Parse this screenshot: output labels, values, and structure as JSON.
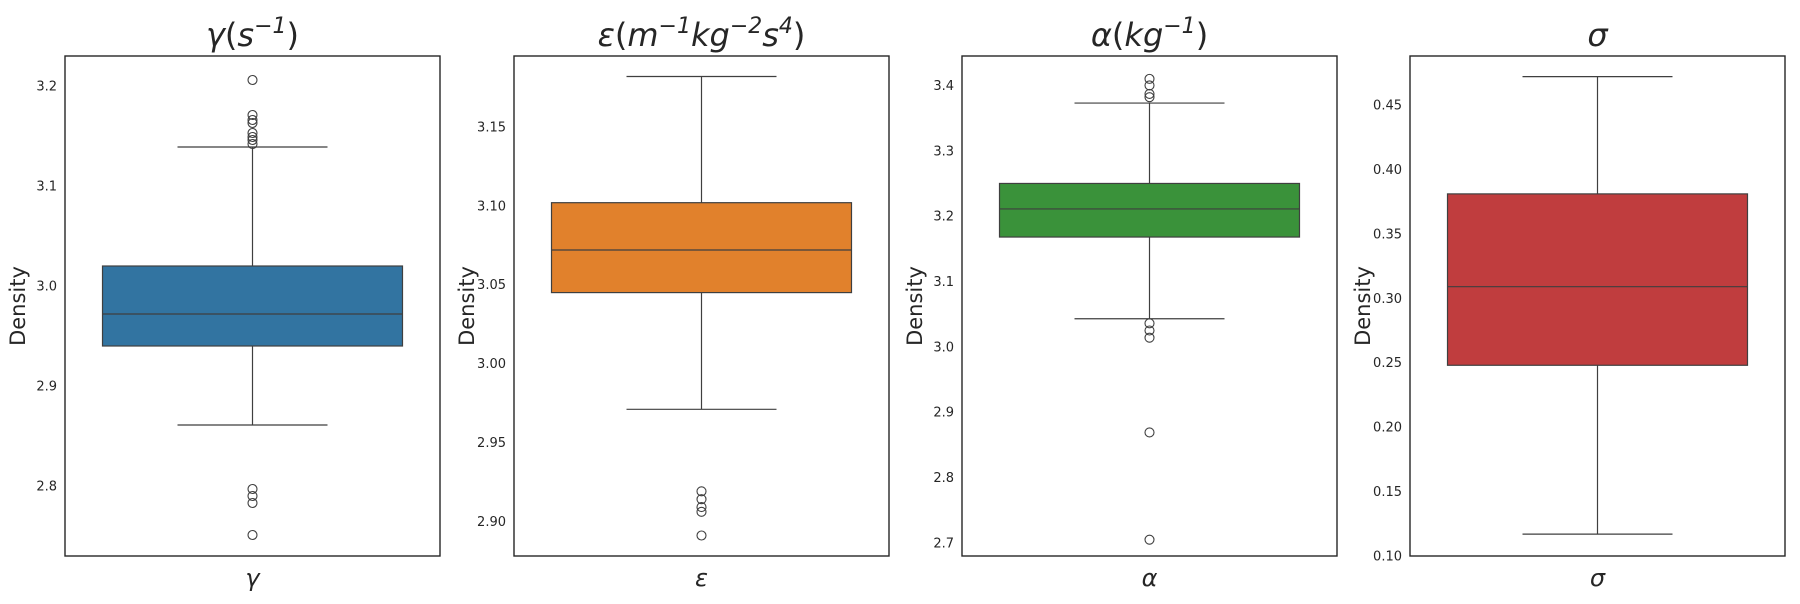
{
  "chart_data": [
    {
      "type": "box",
      "title": "γ(s⁻¹)",
      "title_parts": {
        "sym": "γ",
        "open": "(",
        "u1": "s",
        "e1": "−1",
        "u2": "",
        "e2": "",
        "u3": "",
        "e3": "",
        "close": ")"
      },
      "xlabel": "γ",
      "ylabel": "Density",
      "ylim": [
        2.73,
        3.23
      ],
      "yticks": [
        2.8,
        2.9,
        3.0,
        3.1,
        3.2
      ],
      "ytick_labels": [
        "2.8",
        "2.9",
        "3.0",
        "3.1",
        "3.2"
      ],
      "color": "#3274a1",
      "box": {
        "whisker_low": 2.861,
        "q1": 2.94,
        "median": 2.972,
        "q3": 3.02,
        "whisker_high": 3.139
      },
      "outliers": [
        3.206,
        3.171,
        3.166,
        3.163,
        3.153,
        3.149,
        3.146,
        3.142,
        2.797,
        2.79,
        2.783,
        2.751
      ]
    },
    {
      "type": "box",
      "title": "ε(m⁻¹kg⁻²s⁴)",
      "title_parts": {
        "sym": "ε",
        "open": "(",
        "u1": "m",
        "e1": "−1",
        "u2": "kg",
        "e2": "−2",
        "u3": "s",
        "e3": "4",
        "close": ")"
      },
      "xlabel": "ε",
      "ylabel": "Density",
      "ylim": [
        2.878,
        3.195
      ],
      "yticks": [
        2.9,
        2.95,
        3.0,
        3.05,
        3.1,
        3.15
      ],
      "ytick_labels": [
        "2.90",
        "2.95",
        "3.00",
        "3.05",
        "3.10",
        "3.15"
      ],
      "color": "#e1812c",
      "box": {
        "whisker_low": 2.971,
        "q1": 3.045,
        "median": 3.072,
        "q3": 3.102,
        "whisker_high": 3.182
      },
      "outliers": [
        2.919,
        2.914,
        2.909,
        2.906,
        2.891
      ]
    },
    {
      "type": "box",
      "title": "α(kg⁻¹)",
      "title_parts": {
        "sym": "α",
        "open": "(",
        "u1": "kg",
        "e1": "−1",
        "u2": "",
        "e2": "",
        "u3": "",
        "e3": "",
        "close": ")"
      },
      "xlabel": "α",
      "ylabel": "Density",
      "ylim": [
        2.68,
        3.445
      ],
      "yticks": [
        2.7,
        2.8,
        2.9,
        3.0,
        3.1,
        3.2,
        3.3,
        3.4
      ],
      "ytick_labels": [
        "2.7",
        "2.8",
        "2.9",
        "3.0",
        "3.1",
        "3.2",
        "3.3",
        "3.4"
      ],
      "color": "#3a923a",
      "box": {
        "whisker_low": 3.043,
        "q1": 3.168,
        "median": 3.211,
        "q3": 3.25,
        "whisker_high": 3.373
      },
      "outliers": [
        3.41,
        3.4,
        3.387,
        3.382,
        3.036,
        3.025,
        3.014,
        2.869,
        2.705
      ]
    },
    {
      "type": "box",
      "title": "σ",
      "title_parts": {
        "sym": "σ",
        "open": "",
        "u1": "",
        "e1": "",
        "u2": "",
        "e2": "",
        "u3": "",
        "e3": "",
        "close": ""
      },
      "xlabel": "σ",
      "ylabel": "Density",
      "ylim": [
        0.1,
        0.488
      ],
      "yticks": [
        0.1,
        0.15,
        0.2,
        0.25,
        0.3,
        0.35,
        0.4,
        0.45
      ],
      "ytick_labels": [
        "0.10",
        "0.15",
        "0.20",
        "0.25",
        "0.30",
        "0.35",
        "0.40",
        "0.45"
      ],
      "color": "#c03d3e",
      "box": {
        "whisker_low": 0.117,
        "q1": 0.248,
        "median": 0.309,
        "q3": 0.381,
        "whisker_high": 0.472
      },
      "outliers": []
    }
  ]
}
